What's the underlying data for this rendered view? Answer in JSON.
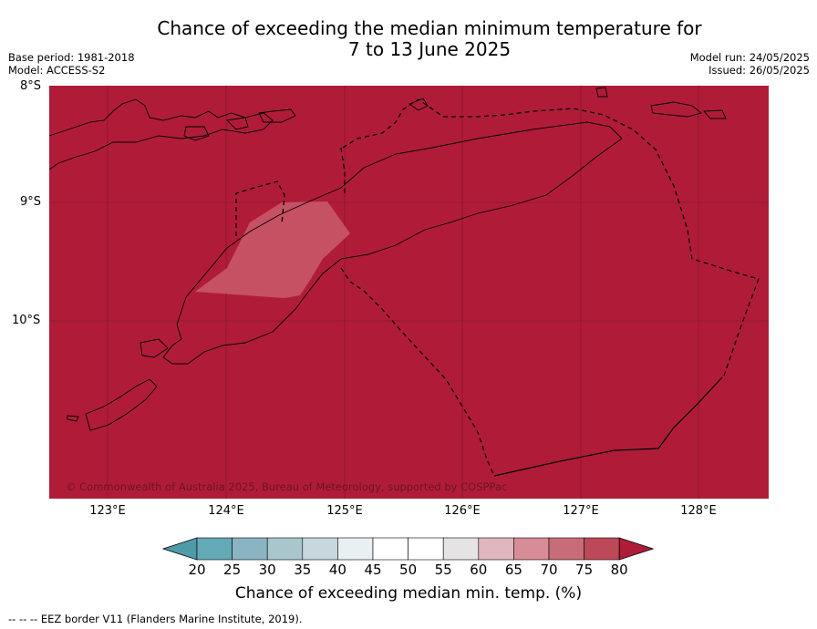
{
  "title": {
    "line1": "Chance of exceeding the median minimum temperature for",
    "line2": "7 to 13 June 2025"
  },
  "meta": {
    "base_period": "Base period: 1981-2018",
    "model": "Model: ACCESS-S2",
    "model_run": "Model run: 24/05/2025",
    "issued": "Issued: 26/05/2025"
  },
  "map": {
    "lat_labels": [
      "8°S",
      "9°S",
      "10°S"
    ],
    "lon_labels": [
      "123°E",
      "124°E",
      "125°E",
      "126°E",
      "127°E",
      "128°E"
    ],
    "background_color": "#b01c38",
    "highlight_color": "#c75465",
    "highlight_category": "70-75",
    "background_category": "80+",
    "copyright": "© Commonwealth of Australia 2025, Bureau of Meteorology, supported by COSPPac"
  },
  "colorbar": {
    "ticks": [
      "20",
      "25",
      "30",
      "35",
      "40",
      "45",
      "50",
      "55",
      "60",
      "65",
      "70",
      "75",
      "80"
    ],
    "colors": [
      "#64aab6",
      "#8ab4c2",
      "#a9c6cd",
      "#c7d7dd",
      "#e9f0f2",
      "#ffffff",
      "#ffffff",
      "#e6e3e5",
      "#dfb6be",
      "#d78c97",
      "#c96c79",
      "#bd4858"
    ],
    "under_color": "#4f9aa8",
    "over_color": "#b01c38",
    "label": "Chance of exceeding median min. temp. (%)"
  },
  "footnote": "--  --  -- EEZ border V11 (Flanders Marine Institute, 2019)."
}
